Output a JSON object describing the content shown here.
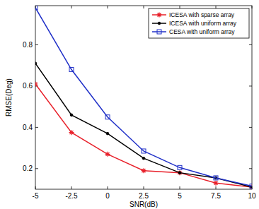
{
  "chart_data": {
    "type": "line",
    "x_label": "SNR(dB)",
    "y_label": "RMSE(Deg)",
    "x": [
      -5,
      -2.5,
      0,
      2.5,
      5,
      7.5,
      10
    ],
    "series": [
      {
        "name": "ICESA with sparse array",
        "color": "#e8202a",
        "marker": "star",
        "values": [
          0.61,
          0.375,
          0.27,
          0.19,
          0.18,
          0.13,
          0.11
        ]
      },
      {
        "name": "ICESA with uniform array",
        "color": "#000000",
        "marker": "point",
        "values": [
          0.71,
          0.46,
          0.37,
          0.25,
          0.18,
          0.155,
          0.11
        ]
      },
      {
        "name": "CESA with uniform array",
        "color": "#2030c8",
        "marker": "square",
        "values": [
          0.98,
          0.68,
          0.45,
          0.285,
          0.205,
          0.155,
          0.115
        ]
      }
    ],
    "xlim": [
      -5,
      10
    ],
    "xticks": [
      -5,
      -2.5,
      0,
      2.5,
      5,
      7.5,
      10
    ],
    "ylim": [
      0.1,
      0.99
    ],
    "yticks": [
      0.2,
      0.4,
      0.6,
      0.8
    ],
    "grid": false,
    "legend": "top-right"
  }
}
